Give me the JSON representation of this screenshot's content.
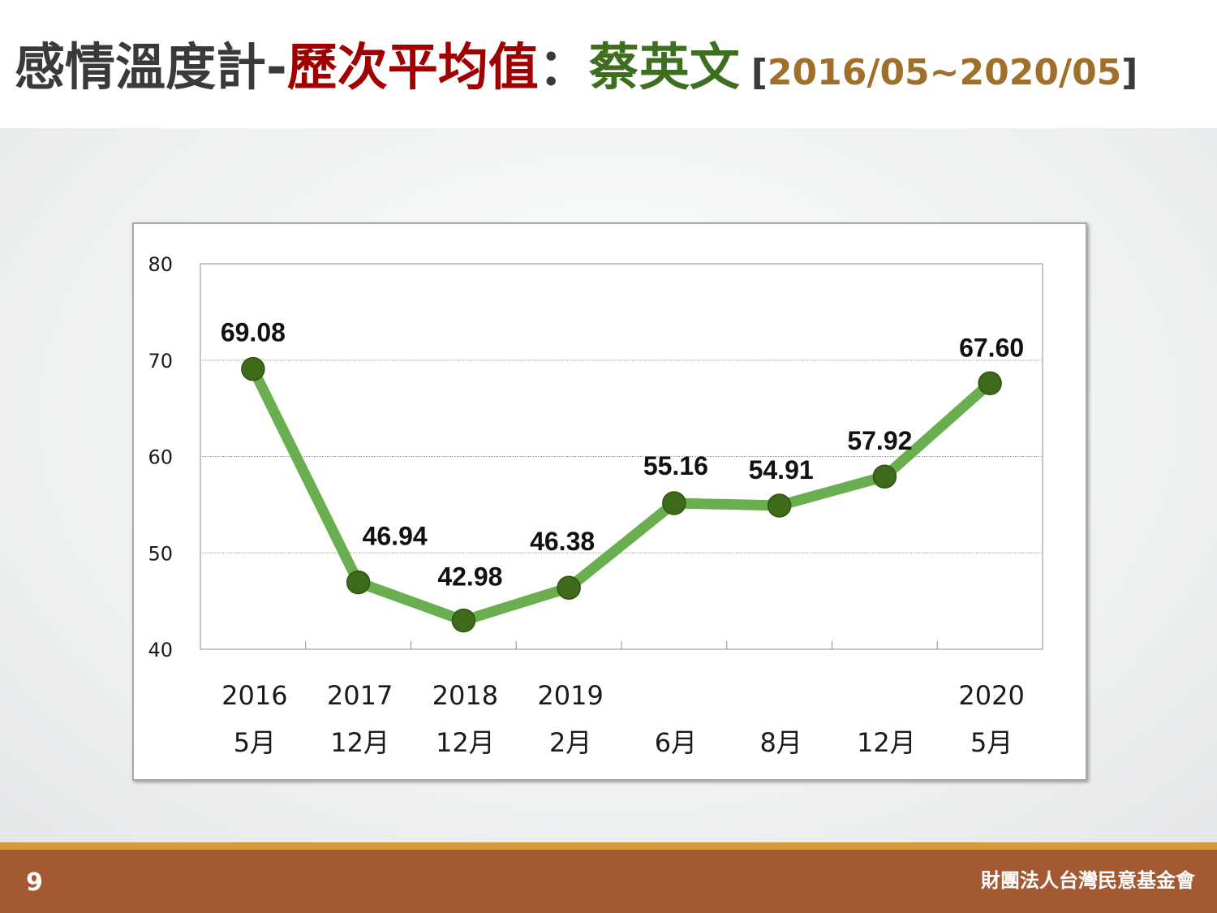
{
  "slide": {
    "title_main": "感情溫度計",
    "title_sep1": "-",
    "title_metric": "歷次平均值",
    "title_colon": "：",
    "title_person": "蔡英文",
    "range_open": "[",
    "range_text": "2016/05~2020/05",
    "range_close": "]",
    "page_number": "9",
    "org_name": "財團法人台灣民意基金會",
    "colors": {
      "title_dark": "#3a3a3a",
      "title_red": "#a00000",
      "title_green": "#3f6e1f",
      "range_gold": "#a0702b",
      "footer_brown": "#a35a32",
      "footer_stripe": "#d39a3c"
    }
  },
  "chart_data": {
    "type": "line",
    "title": "",
    "xlabel": "",
    "ylabel": "",
    "ylim": [
      40,
      80
    ],
    "yticks": [
      40,
      50,
      60,
      70,
      80
    ],
    "grid": true,
    "legend": "none",
    "line_color": "#6aaf4f",
    "marker_color": "#3e6b1a",
    "categories": [
      {
        "year": "2016",
        "month": "5月"
      },
      {
        "year": "2017",
        "month": "12月"
      },
      {
        "year": "2018",
        "month": "12月"
      },
      {
        "year": "2019",
        "month": "2月"
      },
      {
        "year": "",
        "month": "6月"
      },
      {
        "year": "",
        "month": "8月"
      },
      {
        "year": "",
        "month": "12月"
      },
      {
        "year": "2020",
        "month": "5月"
      }
    ],
    "values": [
      69.08,
      46.94,
      42.98,
      46.38,
      55.16,
      54.91,
      57.92,
      67.6
    ],
    "data_labels": [
      "69.08",
      "46.94",
      "42.98",
      "46.38",
      "55.16",
      "54.91",
      "57.92",
      "67.60"
    ]
  }
}
